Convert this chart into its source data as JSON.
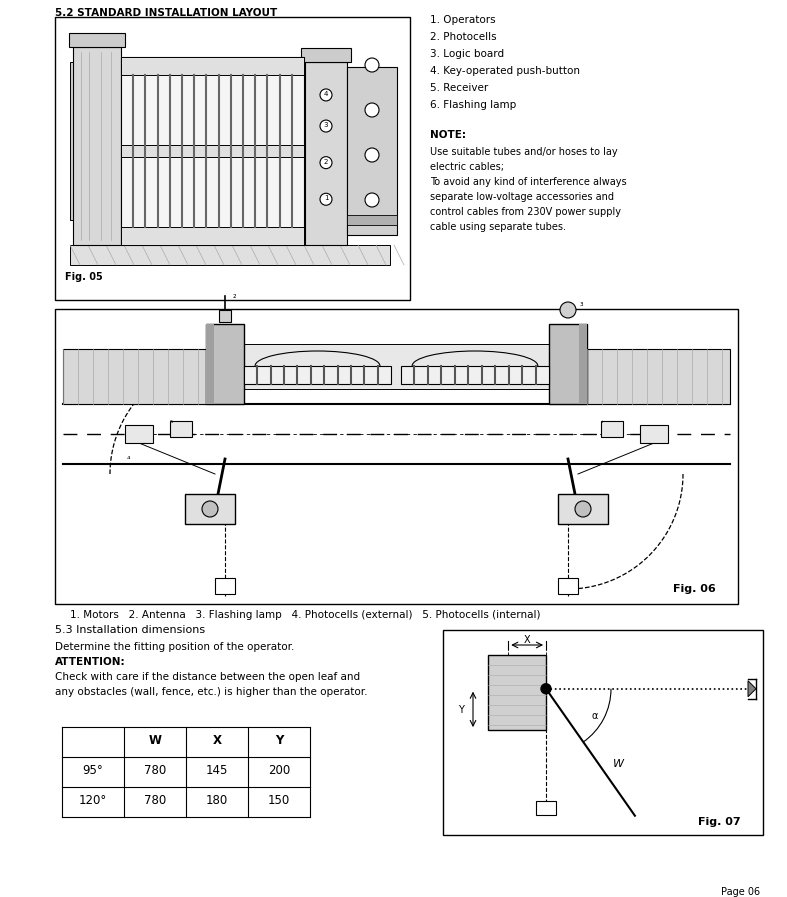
{
  "bg_color": "#ffffff",
  "section1_title": "5.2 STANDARD INSTALLATION LAYOUT",
  "fig05_label": "Fig. 05",
  "fig06_label": "Fig. 06",
  "fig07_label": "Fig. 07",
  "numbered_list": [
    "1. Operators",
    "2. Photocells",
    "3. Logic board",
    "4. Key-operated push-button",
    "5. Receiver",
    "6. Flashing lamp"
  ],
  "note_title": "NOTE:",
  "note_text": "Use suitable tubes and/or hoses to lay\nelectric cables;\nTo avoid any kind of interference always\nseparate low-voltage accessories and\ncontrol cables from 230V power supply\ncable using separate tubes.",
  "section2_label": "1. Motors   2. Antenna   3. Flashing lamp   4. Photocells (external)   5. Photocells (internal)",
  "section3_title": "5.3 Installation dimensions",
  "section3_text1": "Determine the fitting position of the operator.",
  "section3_text2": "ATTENTION:",
  "section3_text3": "Check with care if the distance between the open leaf and\nany obstacles (wall, fence, etc.) is higher than the operator.",
  "table_headers": [
    "",
    "W",
    "X",
    "Y"
  ],
  "table_rows": [
    [
      "95°",
      "780",
      "145",
      "200"
    ],
    [
      "120°",
      "780",
      "180",
      "150"
    ]
  ],
  "page_label": "Page 06"
}
